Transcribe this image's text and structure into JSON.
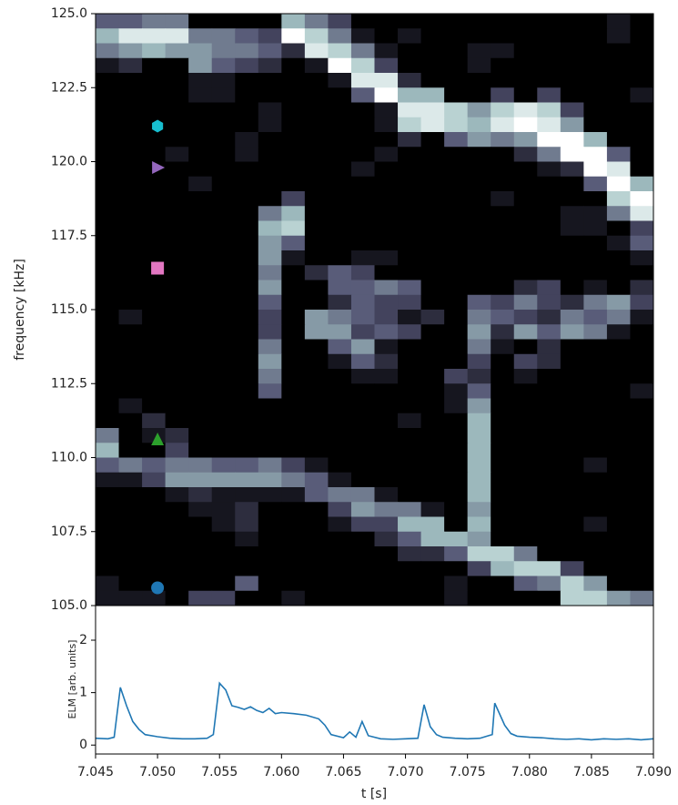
{
  "chart_data": [
    {
      "type": "heatmap",
      "ylabel": "frequency [kHz]",
      "colormap": "bone",
      "zlim": [
        0,
        10
      ],
      "xlim": [
        7.045,
        7.09
      ],
      "ylim": [
        105,
        125
      ],
      "yticks": [
        {
          "value": 105,
          "label": "105.0"
        },
        {
          "value": 107.5,
          "label": "107.5"
        },
        {
          "value": 110,
          "label": "110.0"
        },
        {
          "value": 112.5,
          "label": "112.5"
        },
        {
          "value": 115,
          "label": "115.0"
        },
        {
          "value": 117.5,
          "label": "117.5"
        },
        {
          "value": 120,
          "label": "120.0"
        },
        {
          "value": 122.5,
          "label": "122.5"
        },
        {
          "value": 125,
          "label": "125.0"
        }
      ],
      "z": [
        [
          4,
          4,
          5,
          5,
          0,
          0,
          0,
          0,
          7,
          5,
          3,
          0,
          0,
          0,
          0,
          0,
          0,
          0,
          0,
          0,
          0,
          0,
          1,
          0
        ],
        [
          7,
          9,
          9,
          9,
          5,
          5,
          4,
          3,
          10,
          8,
          5,
          1,
          0,
          1,
          0,
          0,
          0,
          0,
          0,
          0,
          0,
          0,
          1,
          0
        ],
        [
          5,
          6,
          7,
          6,
          6,
          5,
          5,
          4,
          2,
          9,
          8,
          5,
          1,
          0,
          0,
          0,
          1,
          1,
          0,
          0,
          0,
          0,
          0,
          0
        ],
        [
          1,
          2,
          0,
          0,
          6,
          4,
          3,
          2,
          0,
          1,
          10,
          8,
          3,
          0,
          0,
          0,
          1,
          0,
          0,
          0,
          0,
          0,
          0,
          0
        ],
        [
          0,
          0,
          0,
          0,
          1,
          1,
          0,
          0,
          0,
          0,
          1,
          9,
          9,
          2,
          0,
          0,
          0,
          0,
          0,
          0,
          0,
          0,
          0,
          0
        ],
        [
          0,
          0,
          0,
          0,
          1,
          1,
          0,
          0,
          0,
          0,
          0,
          4,
          10,
          7,
          7,
          0,
          0,
          3,
          0,
          3,
          0,
          0,
          0,
          1
        ],
        [
          0,
          0,
          0,
          0,
          0,
          0,
          0,
          1,
          0,
          0,
          0,
          0,
          1,
          9,
          9,
          8,
          6,
          8,
          9,
          8,
          3,
          0,
          0,
          0
        ],
        [
          0,
          0,
          0,
          0,
          0,
          0,
          0,
          1,
          0,
          0,
          0,
          0,
          1,
          8,
          9,
          8,
          7,
          9,
          10,
          9,
          6,
          0,
          0,
          0
        ],
        [
          0,
          0,
          0,
          0,
          0,
          0,
          1,
          0,
          0,
          0,
          0,
          0,
          0,
          2,
          0,
          4,
          6,
          5,
          6,
          10,
          10,
          7,
          0,
          0
        ],
        [
          0,
          0,
          0,
          1,
          0,
          0,
          1,
          0,
          0,
          0,
          0,
          0,
          1,
          0,
          0,
          0,
          0,
          0,
          2,
          5,
          10,
          10,
          4,
          0
        ],
        [
          0,
          0,
          0,
          0,
          0,
          0,
          0,
          0,
          0,
          0,
          0,
          1,
          0,
          0,
          0,
          0,
          0,
          0,
          0,
          1,
          2,
          10,
          9,
          0
        ],
        [
          0,
          0,
          0,
          0,
          1,
          0,
          0,
          0,
          0,
          0,
          0,
          0,
          0,
          0,
          0,
          0,
          0,
          0,
          0,
          0,
          0,
          4,
          10,
          7
        ],
        [
          0,
          0,
          0,
          0,
          0,
          0,
          0,
          0,
          3,
          0,
          0,
          0,
          0,
          0,
          0,
          0,
          0,
          1,
          0,
          0,
          0,
          0,
          8,
          10
        ],
        [
          0,
          0,
          0,
          0,
          0,
          0,
          0,
          5,
          7,
          0,
          0,
          0,
          0,
          0,
          0,
          0,
          0,
          0,
          0,
          0,
          1,
          1,
          5,
          9
        ],
        [
          0,
          0,
          0,
          0,
          0,
          0,
          0,
          7,
          8,
          0,
          0,
          0,
          0,
          0,
          0,
          0,
          0,
          0,
          0,
          0,
          1,
          1,
          0,
          3
        ],
        [
          0,
          0,
          0,
          0,
          0,
          0,
          0,
          6,
          4,
          0,
          0,
          0,
          0,
          0,
          0,
          0,
          0,
          0,
          0,
          0,
          0,
          0,
          1,
          4
        ],
        [
          0,
          0,
          0,
          0,
          0,
          0,
          0,
          6,
          1,
          0,
          0,
          1,
          1,
          0,
          0,
          0,
          0,
          0,
          0,
          0,
          0,
          0,
          0,
          1
        ],
        [
          0,
          0,
          0,
          0,
          0,
          0,
          0,
          5,
          0,
          2,
          4,
          3,
          0,
          0,
          0,
          0,
          0,
          0,
          0,
          0,
          0,
          0,
          0,
          0
        ],
        [
          0,
          0,
          0,
          0,
          0,
          0,
          0,
          6,
          0,
          0,
          4,
          4,
          5,
          4,
          0,
          0,
          0,
          0,
          2,
          3,
          0,
          1,
          0,
          2
        ],
        [
          0,
          0,
          0,
          0,
          0,
          0,
          0,
          4,
          0,
          0,
          2,
          4,
          3,
          3,
          0,
          0,
          4,
          3,
          5,
          3,
          2,
          5,
          6,
          3
        ],
        [
          0,
          1,
          0,
          0,
          0,
          0,
          0,
          3,
          0,
          6,
          5,
          4,
          3,
          1,
          2,
          0,
          5,
          4,
          3,
          2,
          5,
          4,
          5,
          1
        ],
        [
          0,
          0,
          0,
          0,
          0,
          0,
          0,
          3,
          0,
          6,
          6,
          3,
          4,
          3,
          0,
          0,
          6,
          2,
          6,
          4,
          6,
          5,
          1,
          0
        ],
        [
          0,
          0,
          0,
          0,
          0,
          0,
          0,
          5,
          0,
          0,
          4,
          6,
          1,
          0,
          0,
          0,
          5,
          1,
          0,
          2,
          0,
          0,
          0,
          0
        ],
        [
          0,
          0,
          0,
          0,
          0,
          0,
          0,
          6,
          0,
          0,
          1,
          4,
          2,
          0,
          0,
          0,
          3,
          0,
          3,
          2,
          0,
          0,
          0,
          0
        ],
        [
          0,
          0,
          0,
          0,
          0,
          0,
          0,
          5,
          0,
          0,
          0,
          1,
          1,
          0,
          0,
          3,
          2,
          0,
          1,
          0,
          0,
          0,
          0,
          0
        ],
        [
          0,
          0,
          0,
          0,
          0,
          0,
          0,
          4,
          0,
          0,
          0,
          0,
          0,
          0,
          0,
          1,
          4,
          0,
          0,
          0,
          0,
          0,
          0,
          1
        ],
        [
          0,
          1,
          0,
          0,
          0,
          0,
          0,
          0,
          0,
          0,
          0,
          0,
          0,
          0,
          0,
          1,
          6,
          0,
          0,
          0,
          0,
          0,
          0,
          0
        ],
        [
          0,
          0,
          2,
          0,
          0,
          0,
          0,
          0,
          0,
          0,
          0,
          0,
          0,
          1,
          0,
          0,
          7,
          0,
          0,
          0,
          0,
          0,
          0,
          0
        ],
        [
          5,
          0,
          1,
          2,
          0,
          0,
          0,
          0,
          0,
          0,
          0,
          0,
          0,
          0,
          0,
          0,
          7,
          0,
          0,
          0,
          0,
          0,
          0,
          0
        ],
        [
          7,
          0,
          0,
          3,
          0,
          0,
          0,
          0,
          0,
          0,
          0,
          0,
          0,
          0,
          0,
          0,
          7,
          0,
          0,
          0,
          0,
          0,
          0,
          0
        ],
        [
          4,
          5,
          4,
          5,
          5,
          4,
          4,
          5,
          3,
          1,
          0,
          0,
          0,
          0,
          0,
          0,
          7,
          0,
          0,
          0,
          0,
          1,
          0,
          0
        ],
        [
          1,
          1,
          3,
          6,
          6,
          6,
          6,
          6,
          5,
          4,
          1,
          0,
          0,
          0,
          0,
          0,
          7,
          0,
          0,
          0,
          0,
          0,
          0,
          0
        ],
        [
          0,
          0,
          0,
          1,
          2,
          1,
          1,
          1,
          1,
          4,
          5,
          5,
          1,
          0,
          0,
          0,
          7,
          0,
          0,
          0,
          0,
          0,
          0,
          0
        ],
        [
          0,
          0,
          0,
          0,
          1,
          1,
          2,
          0,
          0,
          0,
          3,
          6,
          5,
          5,
          1,
          0,
          6,
          0,
          0,
          0,
          0,
          0,
          0,
          0
        ],
        [
          0,
          0,
          0,
          0,
          0,
          1,
          2,
          0,
          0,
          0,
          1,
          3,
          3,
          7,
          7,
          0,
          7,
          0,
          0,
          0,
          0,
          1,
          0,
          0
        ],
        [
          0,
          0,
          0,
          0,
          0,
          0,
          1,
          0,
          0,
          0,
          0,
          0,
          2,
          4,
          7,
          7,
          6,
          0,
          0,
          0,
          0,
          0,
          0,
          0
        ],
        [
          0,
          0,
          0,
          0,
          0,
          0,
          0,
          0,
          0,
          0,
          0,
          0,
          0,
          2,
          2,
          4,
          8,
          8,
          5,
          0,
          0,
          0,
          0,
          0
        ],
        [
          0,
          0,
          0,
          0,
          0,
          0,
          0,
          0,
          0,
          0,
          0,
          0,
          0,
          0,
          0,
          0,
          3,
          7,
          8,
          8,
          3,
          0,
          0,
          0
        ],
        [
          1,
          0,
          0,
          0,
          0,
          0,
          4,
          0,
          0,
          0,
          0,
          0,
          0,
          0,
          0,
          1,
          0,
          0,
          4,
          5,
          8,
          6,
          0,
          0
        ],
        [
          1,
          1,
          1,
          0,
          3,
          3,
          0,
          0,
          1,
          0,
          0,
          0,
          0,
          0,
          0,
          1,
          0,
          0,
          0,
          0,
          8,
          8,
          6,
          5
        ]
      ],
      "markers": [
        {
          "x": 7.05,
          "y": 105.6,
          "color": "#1f77b4",
          "marker": "circle"
        },
        {
          "x": 7.05,
          "y": 110.6,
          "color": "#2ca02c",
          "marker": "triangle-up"
        },
        {
          "x": 7.05,
          "y": 116.4,
          "color": "#e377c2",
          "marker": "square"
        },
        {
          "x": 7.05,
          "y": 119.8,
          "color": "#9467bd",
          "marker": "triangle-right"
        },
        {
          "x": 7.05,
          "y": 121.2,
          "color": "#17becf",
          "marker": "hexagon"
        }
      ]
    },
    {
      "type": "line",
      "xlabel": "t [s]",
      "ylabel": "ELM [arb. units]",
      "xlim": [
        7.045,
        7.09
      ],
      "ylim": [
        -0.17,
        2.66
      ],
      "xticks": [
        7.045,
        {
          "value": 7.05,
          "label": "7.050"
        },
        7.055,
        {
          "value": 7.06,
          "label": "7.060"
        },
        7.065,
        {
          "value": 7.07,
          "label": "7.070"
        },
        7.075,
        {
          "value": 7.08,
          "label": "7.080"
        },
        7.085,
        {
          "value": 7.09,
          "label": "7.090"
        }
      ],
      "yticks": [
        0,
        1,
        2
      ],
      "x": [
        7.045,
        7.046,
        7.0465,
        7.047,
        7.0475,
        7.048,
        7.0485,
        7.049,
        7.05,
        7.051,
        7.052,
        7.053,
        7.054,
        7.0545,
        7.055,
        7.0555,
        7.056,
        7.0565,
        7.057,
        7.0575,
        7.058,
        7.0585,
        7.059,
        7.0595,
        7.06,
        7.061,
        7.062,
        7.063,
        7.0635,
        7.064,
        7.065,
        7.0655,
        7.066,
        7.0665,
        7.067,
        7.068,
        7.069,
        7.07,
        7.071,
        7.0715,
        7.072,
        7.0725,
        7.073,
        7.074,
        7.075,
        7.076,
        7.077,
        7.0772,
        7.078,
        7.0785,
        7.079,
        7.08,
        7.081,
        7.082,
        7.083,
        7.084,
        7.085,
        7.086,
        7.087,
        7.088,
        7.089,
        7.09
      ],
      "series": [
        {
          "color": "#1f77b4",
          "values": [
            0.13,
            0.12,
            0.15,
            1.1,
            0.75,
            0.45,
            0.3,
            0.2,
            0.16,
            0.13,
            0.12,
            0.12,
            0.13,
            0.2,
            1.18,
            1.05,
            0.75,
            0.72,
            0.68,
            0.73,
            0.66,
            0.62,
            0.7,
            0.6,
            0.62,
            0.6,
            0.57,
            0.5,
            0.38,
            0.2,
            0.14,
            0.25,
            0.15,
            0.45,
            0.18,
            0.12,
            0.11,
            0.12,
            0.13,
            0.77,
            0.35,
            0.2,
            0.15,
            0.13,
            0.12,
            0.13,
            0.2,
            0.8,
            0.38,
            0.22,
            0.17,
            0.15,
            0.14,
            0.12,
            0.11,
            0.12,
            0.1,
            0.12,
            0.11,
            0.12,
            0.1,
            0.12
          ]
        }
      ]
    }
  ]
}
